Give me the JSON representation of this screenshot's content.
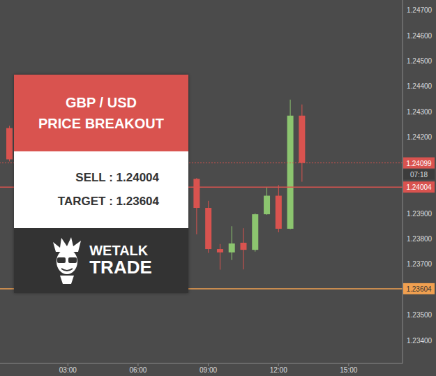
{
  "chart_data": {
    "type": "candlestick",
    "x": [
      0.5,
      8.5,
      9,
      9.5,
      10,
      10.5,
      11,
      11.5,
      12,
      12.5,
      13
    ],
    "open": [
      1.24236,
      1.24036,
      1.23922,
      1.2376,
      1.23747,
      1.23785,
      1.23757,
      1.23897,
      1.2397,
      1.2384,
      1.24285
    ],
    "high": [
      1.24245,
      1.2404,
      1.2395,
      1.2378,
      1.2385,
      1.23842,
      1.239,
      1.24004,
      1.24012,
      1.24348,
      1.24329
    ],
    "low": [
      1.24105,
      1.23818,
      1.23745,
      1.23679,
      1.23717,
      1.2368,
      1.2375,
      1.23895,
      1.23826,
      1.23838,
      1.24025
    ],
    "close": [
      1.24113,
      1.23922,
      1.2376,
      1.23747,
      1.23782,
      1.23757,
      1.23897,
      1.2397,
      1.2384,
      1.24285,
      1.24099
    ],
    "colors": [
      "#d9534f",
      "#d9534f",
      "#d9534f",
      "#d9534f",
      "#8cc56f",
      "#d9534f",
      "#8cc56f",
      "#8cc56f",
      "#d9534f",
      "#8cc56f",
      "#d9534f"
    ],
    "xlim": [
      0.1,
      17.3
    ],
    "xticks": [
      {
        "value": 3,
        "label": "03:00"
      },
      {
        "value": 6,
        "label": "06:00"
      },
      {
        "value": 9,
        "label": "09:00"
      },
      {
        "value": 12,
        "label": "12:00"
      },
      {
        "value": 15,
        "label": "15:00"
      }
    ],
    "ylim": [
      1.2331,
      1.2474
    ],
    "yticks": [
      {
        "value": 1.247,
        "label": "1.24700"
      },
      {
        "value": 1.246,
        "label": "1.24600"
      },
      {
        "value": 1.245,
        "label": "1.24500"
      },
      {
        "value": 1.244,
        "label": "1.24400"
      },
      {
        "value": 1.243,
        "label": "1.24300"
      },
      {
        "value": 1.242,
        "label": "1.24200"
      },
      {
        "value": 1.239,
        "label": "1.23900"
      },
      {
        "value": 1.238,
        "label": "1.23800"
      },
      {
        "value": 1.237,
        "label": "1.23700"
      },
      {
        "value": 1.235,
        "label": "1.23500"
      },
      {
        "value": 1.234,
        "label": "1.23400"
      }
    ],
    "grid": false,
    "lines": [
      {
        "value": 1.24099,
        "color": "#d9534f",
        "line_style": "dotted",
        "countdown": "07:18"
      },
      {
        "value": 1.24004,
        "color": "#d9534f",
        "line_style": "solid"
      },
      {
        "value": 1.23604,
        "color": "#f0a050",
        "line_style": "solid"
      }
    ],
    "annotation": {
      "header": [
        "GBP / USD",
        "PRICE BREAKOUT"
      ],
      "lines": [
        "SELL : 1.24004",
        "TARGET : 1.23604"
      ],
      "logo": [
        "WETALK",
        "TRADE"
      ]
    }
  }
}
